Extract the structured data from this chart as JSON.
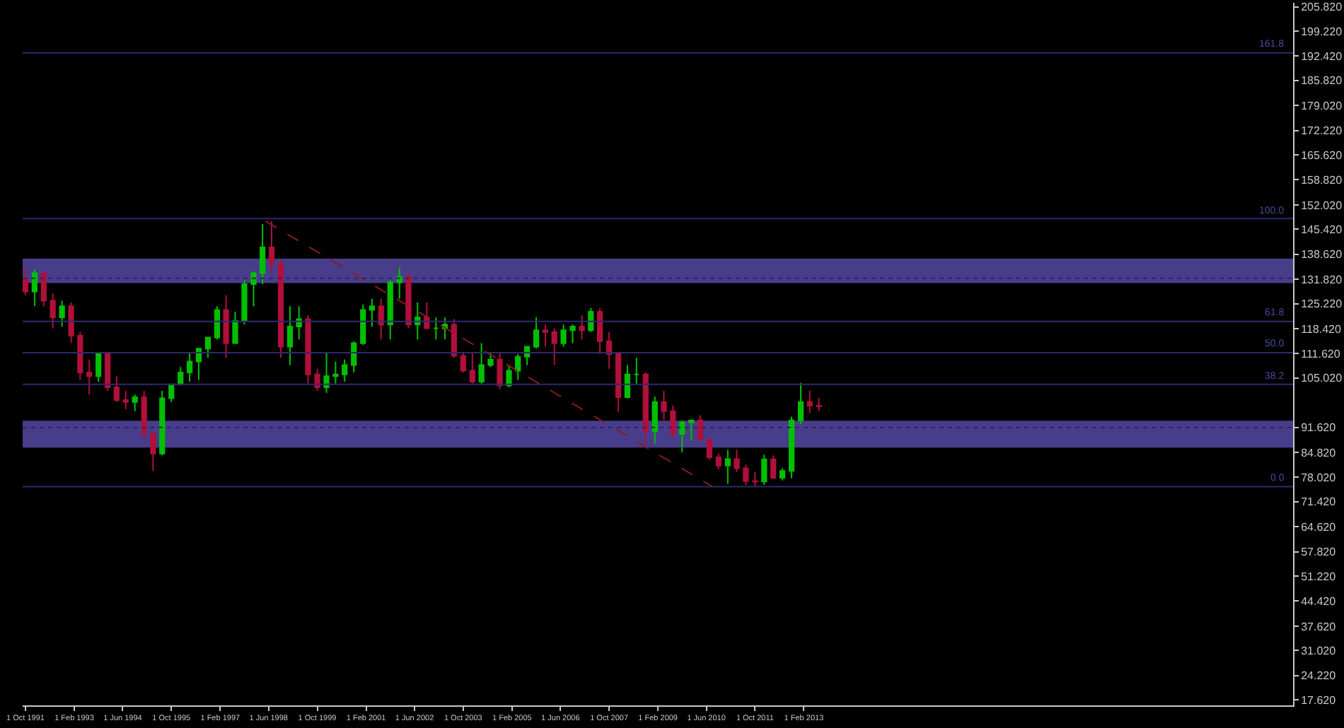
{
  "chart_data": {
    "type": "candlestick",
    "x": [
      "1991-10-01",
      "1992-01-01",
      "1992-04-01",
      "1992-07-01",
      "1992-10-01",
      "1993-01-01",
      "1993-04-01",
      "1993-07-01",
      "1993-10-01",
      "1994-01-01",
      "1994-04-01",
      "1994-07-01",
      "1994-10-01",
      "1995-01-01",
      "1995-04-01",
      "1995-07-01",
      "1995-10-01",
      "1996-01-01",
      "1996-04-01",
      "1996-07-01",
      "1996-10-01",
      "1997-01-01",
      "1997-04-01",
      "1997-07-01",
      "1997-10-01",
      "1998-01-01",
      "1998-04-01",
      "1998-07-01",
      "1998-10-01",
      "1999-01-01",
      "1999-04-01",
      "1999-07-01",
      "1999-10-01",
      "2000-01-01",
      "2000-04-01",
      "2000-07-01",
      "2000-10-01",
      "2001-01-01",
      "2001-04-01",
      "2001-07-01",
      "2001-10-01",
      "2002-01-01",
      "2002-04-01",
      "2002-07-01",
      "2002-10-01",
      "2003-01-01",
      "2003-04-01",
      "2003-07-01",
      "2003-10-01",
      "2004-01-01",
      "2004-04-01",
      "2004-07-01",
      "2004-10-01",
      "2005-01-01",
      "2005-04-01",
      "2005-07-01",
      "2005-10-01",
      "2006-01-01",
      "2006-04-01",
      "2006-07-01",
      "2006-10-01",
      "2007-01-01",
      "2007-04-01",
      "2007-07-01",
      "2007-10-01",
      "2008-01-01",
      "2008-04-01",
      "2008-07-01",
      "2008-10-01",
      "2009-01-01",
      "2009-04-01",
      "2009-07-01",
      "2009-10-01",
      "2010-01-01",
      "2010-04-01",
      "2010-07-01",
      "2010-10-01",
      "2011-01-01",
      "2011-04-01",
      "2011-07-01",
      "2011-10-01",
      "2012-01-01",
      "2012-04-01",
      "2012-07-01",
      "2012-10-01",
      "2013-01-01",
      "2013-04-01",
      "2013-07-01"
    ],
    "ohlc": [
      [
        132.0,
        135.0,
        127.5,
        128.5
      ],
      [
        128.5,
        134.5,
        124.5,
        133.5
      ],
      [
        133.5,
        134.0,
        124.5,
        126.0
      ],
      [
        126.0,
        128.0,
        118.5,
        121.5
      ],
      [
        121.5,
        126.0,
        119.0,
        124.5
      ],
      [
        124.5,
        125.5,
        114.5,
        116.5
      ],
      [
        116.5,
        117.5,
        104.5,
        106.5
      ],
      [
        106.5,
        110.0,
        100.5,
        105.5
      ],
      [
        105.5,
        112.0,
        104.0,
        111.5
      ],
      [
        111.5,
        112.0,
        101.5,
        102.5
      ],
      [
        102.5,
        105.5,
        98.5,
        99.0
      ],
      [
        99.0,
        101.5,
        96.5,
        98.5
      ],
      [
        98.5,
        100.5,
        96.0,
        99.8
      ],
      [
        99.8,
        101.5,
        88.5,
        90.0
      ],
      [
        90.0,
        90.5,
        79.8,
        84.5
      ],
      [
        84.5,
        101.5,
        84.0,
        99.5
      ],
      [
        99.5,
        103.5,
        98.5,
        103.3
      ],
      [
        103.3,
        108.0,
        103.0,
        106.5
      ],
      [
        106.5,
        112.0,
        104.0,
        109.5
      ],
      [
        109.5,
        113.0,
        104.5,
        113.0
      ],
      [
        113.0,
        116.0,
        110.5,
        116.0
      ],
      [
        116.0,
        124.5,
        115.5,
        123.5
      ],
      [
        123.5,
        127.5,
        110.5,
        114.5
      ],
      [
        114.5,
        123.0,
        114.5,
        120.5
      ],
      [
        120.5,
        131.5,
        119.5,
        130.5
      ],
      [
        130.5,
        134.0,
        124.5,
        133.5
      ],
      [
        133.5,
        146.8,
        130.5,
        140.5
      ],
      [
        140.5,
        147.6,
        133.5,
        136.0
      ],
      [
        136.0,
        137.0,
        110.5,
        113.5
      ],
      [
        113.5,
        124.5,
        108.5,
        119.0
      ],
      [
        119.0,
        124.5,
        115.5,
        121.0
      ],
      [
        121.0,
        122.0,
        103.5,
        106.0
      ],
      [
        106.0,
        107.5,
        101.5,
        102.5
      ],
      [
        102.5,
        112.0,
        101.0,
        105.5
      ],
      [
        105.5,
        109.5,
        103.5,
        106.0
      ],
      [
        106.0,
        110.0,
        104.0,
        108.5
      ],
      [
        108.5,
        115.0,
        106.5,
        114.5
      ],
      [
        114.5,
        125.0,
        114.0,
        123.5
      ],
      [
        123.5,
        126.5,
        119.0,
        124.5
      ],
      [
        124.5,
        126.5,
        115.5,
        119.5
      ],
      [
        119.5,
        131.5,
        115.5,
        131.0
      ],
      [
        131.0,
        135.0,
        126.5,
        132.5
      ],
      [
        132.5,
        133.5,
        118.5,
        119.5
      ],
      [
        119.5,
        125.5,
        115.5,
        121.5
      ],
      [
        121.5,
        125.5,
        118.5,
        118.5
      ],
      [
        118.5,
        121.5,
        115.5,
        118.5
      ],
      [
        118.5,
        121.5,
        115.5,
        119.5
      ],
      [
        119.5,
        121.0,
        110.5,
        111.0
      ],
      [
        111.0,
        112.0,
        106.5,
        107.0
      ],
      [
        107.0,
        112.0,
        103.5,
        104.0
      ],
      [
        104.0,
        114.5,
        103.5,
        108.5
      ],
      [
        108.5,
        112.0,
        108.0,
        110.0
      ],
      [
        110.0,
        112.0,
        102.0,
        103.0
      ],
      [
        103.0,
        108.5,
        102.5,
        107.0
      ],
      [
        107.0,
        111.5,
        104.5,
        110.8
      ],
      [
        110.8,
        113.5,
        108.5,
        113.5
      ],
      [
        113.5,
        121.5,
        113.0,
        118.0
      ],
      [
        118.0,
        119.5,
        113.5,
        117.5
      ],
      [
        117.5,
        118.5,
        108.5,
        114.5
      ],
      [
        114.5,
        119.5,
        113.5,
        118.0
      ],
      [
        118.0,
        119.5,
        114.5,
        119.0
      ],
      [
        119.0,
        122.0,
        115.5,
        118.0
      ],
      [
        118.0,
        124.0,
        117.5,
        123.0
      ],
      [
        123.0,
        124.0,
        111.5,
        115.0
      ],
      [
        115.0,
        117.5,
        107.5,
        111.5
      ],
      [
        111.5,
        111.5,
        95.8,
        99.8
      ],
      [
        99.8,
        108.5,
        99.5,
        106.0
      ],
      [
        106.0,
        110.5,
        103.5,
        106.0
      ],
      [
        106.0,
        106.5,
        87.1,
        90.5
      ],
      [
        90.5,
        100.0,
        87.2,
        98.5
      ],
      [
        98.5,
        101.5,
        93.5,
        96.0
      ],
      [
        96.0,
        97.5,
        88.5,
        89.8
      ],
      [
        89.8,
        93.5,
        84.8,
        93.0
      ],
      [
        93.0,
        93.5,
        88.0,
        93.5
      ],
      [
        93.5,
        94.9,
        88.0,
        88.3
      ],
      [
        88.3,
        88.5,
        82.8,
        83.5
      ],
      [
        83.5,
        84.5,
        80.2,
        81.2
      ],
      [
        81.2,
        85.5,
        76.3,
        83.0
      ],
      [
        83.0,
        85.5,
        79.5,
        80.5
      ],
      [
        80.5,
        81.5,
        75.9,
        77.0
      ],
      [
        77.0,
        79.5,
        75.5,
        76.9
      ],
      [
        76.9,
        84.2,
        76.0,
        82.9
      ],
      [
        82.9,
        84.0,
        77.6,
        77.9
      ],
      [
        77.9,
        80.5,
        77.2,
        79.8
      ],
      [
        79.8,
        94.5,
        77.8,
        93.5
      ],
      [
        93.5,
        103.7,
        92.5,
        98.5
      ],
      [
        98.5,
        101.5,
        95.5,
        97.5
      ],
      [
        97.5,
        99.5,
        96.0,
        97.3
      ]
    ],
    "colors": [
      "#b0103a",
      "#00c000",
      "#b0103a",
      "#b0103a",
      "#00c000",
      "#b0103a",
      "#b0103a",
      "#b0103a",
      "#00c000",
      "#b0103a",
      "#b0103a",
      "#b0103a",
      "#00c000",
      "#b0103a",
      "#b0103a",
      "#00c000",
      "#00c000",
      "#00c000",
      "#00c000",
      "#00c000",
      "#00c000",
      "#00c000",
      "#b0103a",
      "#00c000",
      "#00c000",
      "#00c000",
      "#00c000",
      "#b0103a",
      "#b0103a",
      "#00c000",
      "#00c000",
      "#b0103a",
      "#b0103a",
      "#00c000",
      "#00c000",
      "#00c000",
      "#00c000",
      "#00c000",
      "#00c000",
      "#b0103a",
      "#00c000",
      "#00c000",
      "#b0103a",
      "#00c000",
      "#b0103a",
      "#00c000",
      "#00c000",
      "#b0103a",
      "#b0103a",
      "#b0103a",
      "#00c000",
      "#00c000",
      "#b0103a",
      "#00c000",
      "#00c000",
      "#00c000",
      "#00c000",
      "#b0103a",
      "#b0103a",
      "#00c000",
      "#00c000",
      "#b0103a",
      "#00c000",
      "#b0103a",
      "#b0103a",
      "#b0103a",
      "#00c000",
      "#00c000",
      "#b0103a",
      "#00c000",
      "#b0103a",
      "#b0103a",
      "#00c000",
      "#00c000",
      "#b0103a",
      "#b0103a",
      "#b0103a",
      "#00c000",
      "#b0103a",
      "#b0103a",
      "#b0103a",
      "#00c000",
      "#b0103a",
      "#00c000",
      "#00c000",
      "#00c000",
      "#b0103a",
      "#b0103a"
    ],
    "annotations": [
      {
        "text": "161.8",
        "y": 193.3
      },
      {
        "text": "100.0",
        "y": 148.3
      },
      {
        "text": "61.8",
        "y": 120.4
      },
      {
        "text": "50.0",
        "y": 111.9
      },
      {
        "text": "38.2",
        "y": 103.3
      },
      {
        "text": "0.0",
        "y": 75.5
      }
    ],
    "series": [
      {
        "type": "line",
        "x": [
          "1998-05-01",
          "2010-08-01"
        ],
        "values": [
          147.6,
          75.5
        ],
        "color": "#8b1a1a",
        "line_style": "dashed"
      }
    ],
    "ref_lines": [
      {
        "axis": "y",
        "value": 193.3,
        "color": "#2e2a70"
      },
      {
        "axis": "y",
        "value": 148.3,
        "color": "#2e2a70"
      },
      {
        "axis": "y",
        "value": 120.4,
        "color": "#2e2a70"
      },
      {
        "axis": "y",
        "value": 111.9,
        "color": "#2e2a70"
      },
      {
        "axis": "y",
        "value": 103.3,
        "color": "#2e2a70"
      },
      {
        "axis": "y",
        "value": 75.5,
        "color": "#2e2a70"
      },
      {
        "axis": "y",
        "value": 132.1,
        "color": "#2a2560",
        "line_style": "dotted"
      },
      {
        "axis": "y",
        "value": 91.6,
        "color": "#2a2560",
        "line_style": "dotted"
      }
    ],
    "bands": [
      {
        "axis": "y",
        "from": 130.8,
        "to": 137.4,
        "color": "#483d8b"
      },
      {
        "axis": "y",
        "from": 86.1,
        "to": 93.4,
        "color": "#483d8b"
      }
    ],
    "xlim": [
      "1991-09-03",
      "2026-07-01"
    ],
    "xticks": [
      {
        "value": "1991-10-01",
        "label": "1 Oct 1991"
      },
      {
        "value": "1993-02-01",
        "label": "1 Feb 1993"
      },
      {
        "value": "1994-06-01",
        "label": "1 Jun 1994"
      },
      {
        "value": "1995-10-01",
        "label": "1 Oct 1995"
      },
      {
        "value": "1997-02-01",
        "label": "1 Feb 1997"
      },
      {
        "value": "1998-06-01",
        "label": "1 Jun 1998"
      },
      {
        "value": "1999-10-01",
        "label": "1 Oct 1999"
      },
      {
        "value": "2001-02-01",
        "label": "1 Feb 2001"
      },
      {
        "value": "2002-06-01",
        "label": "1 Jun 2002"
      },
      {
        "value": "2003-10-01",
        "label": "1 Oct 2003"
      },
      {
        "value": "2005-02-01",
        "label": "1 Feb 2005"
      },
      {
        "value": "2006-06-01",
        "label": "1 Jun 2006"
      },
      {
        "value": "2007-10-01",
        "label": "1 Oct 2007"
      },
      {
        "value": "2009-02-01",
        "label": "1 Feb 2009"
      },
      {
        "value": "2010-06-01",
        "label": "1 Jun 2010"
      },
      {
        "value": "2011-10-01",
        "label": "1 Oct 2011"
      },
      {
        "value": "2013-02-01",
        "label": "1 Feb 2013"
      }
    ],
    "ylim": [
      16.1,
      206.9
    ],
    "yticks": [
      {
        "value": 17.62,
        "label": "17.620"
      },
      {
        "value": 24.22,
        "label": "24.220"
      },
      {
        "value": 31.02,
        "label": "31.020"
      },
      {
        "value": 37.62,
        "label": "37.620"
      },
      {
        "value": 44.42,
        "label": "44.420"
      },
      {
        "value": 51.22,
        "label": "51.220"
      },
      {
        "value": 57.82,
        "label": "57.820"
      },
      {
        "value": 64.62,
        "label": "64.620"
      },
      {
        "value": 71.42,
        "label": "71.420"
      },
      {
        "value": 78.02,
        "label": "78.020"
      },
      {
        "value": 84.82,
        "label": "84.820"
      },
      {
        "value": 91.62,
        "label": "91.620"
      },
      {
        "value": 105.02,
        "label": "105.020"
      },
      {
        "value": 111.62,
        "label": "111.620"
      },
      {
        "value": 118.42,
        "label": "118.420"
      },
      {
        "value": 125.22,
        "label": "125.220"
      },
      {
        "value": 131.82,
        "label": "131.820"
      },
      {
        "value": 138.62,
        "label": "138.620"
      },
      {
        "value": 145.42,
        "label": "145.420"
      },
      {
        "value": 152.02,
        "label": "152.020"
      },
      {
        "value": 158.82,
        "label": "158.820"
      },
      {
        "value": 165.62,
        "label": "165.620"
      },
      {
        "value": 172.22,
        "label": "172.220"
      },
      {
        "value": 179.02,
        "label": "179.020"
      },
      {
        "value": 185.82,
        "label": "185.820"
      },
      {
        "value": 192.42,
        "label": "192.420"
      },
      {
        "value": 199.22,
        "label": "199.220"
      },
      {
        "value": 205.82,
        "label": "205.820"
      }
    ],
    "grid": false
  }
}
